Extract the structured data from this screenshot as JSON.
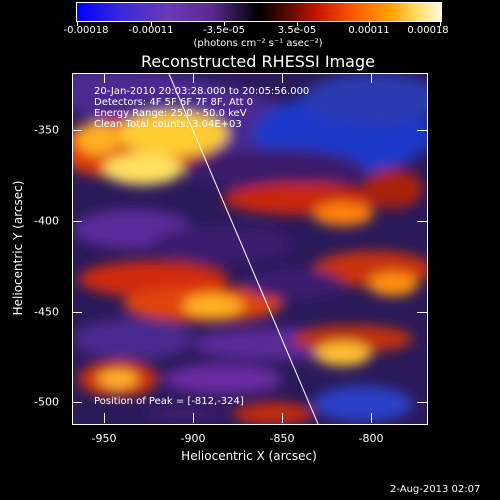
{
  "colorbar": {
    "tick_labels": [
      "-0.00018",
      "-0.00011",
      "-3.5e-05",
      "3.5e-05",
      "0.00011",
      "0.00018"
    ],
    "units": "(photons cm⁻² s⁻¹ asec⁻²)"
  },
  "title": "Reconstructed RHESSI Image",
  "annotations": {
    "time": "20-Jan-2010 20:03:28.000 to 20:05:56.000",
    "detectors": "Detectors: 4F 5F 6F 7F 8F, Att 0",
    "energy": "Energy Range: 25.0 - 50.0 keV",
    "clean": "Clean     Total counts: 3.04E+03",
    "peak": "Position of Peak = [-812,-324]"
  },
  "axes": {
    "xlabel": "Heliocentric X (arcsec)",
    "ylabel": "Heliocentric Y (arcsec)",
    "x_ticks": [
      "-950",
      "-900",
      "-850",
      "-800"
    ],
    "y_ticks": [
      "-350",
      "-400",
      "-450",
      "-500"
    ]
  },
  "timestamp": "2-Aug-2013 02:07",
  "colors": {
    "limb_line": "#ffffff",
    "background": "#000000"
  }
}
